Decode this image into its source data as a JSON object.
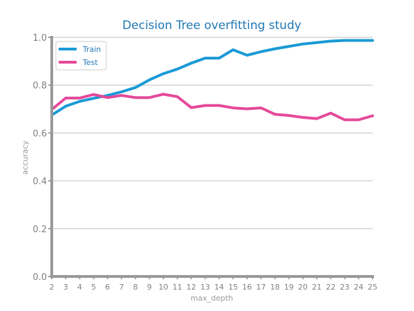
{
  "chart_data": {
    "type": "line",
    "title": "Decision Tree overfitting study",
    "xlabel": "max_depth",
    "ylabel": "accuracy",
    "x": [
      2,
      3,
      4,
      5,
      6,
      7,
      8,
      9,
      10,
      11,
      12,
      13,
      14,
      15,
      16,
      17,
      18,
      19,
      20,
      21,
      22,
      23,
      24,
      25
    ],
    "xlim": [
      2,
      25
    ],
    "ylim": [
      0.0,
      1.0
    ],
    "yticks": [
      "0.0",
      "0.2",
      "0.4",
      "0.6",
      "0.8",
      "1.0"
    ],
    "grid": "horizontal",
    "legend_position": "top-left",
    "series": [
      {
        "name": "Train",
        "color": "#1a9ad6",
        "values": [
          0.675,
          0.712,
          0.732,
          0.745,
          0.757,
          0.772,
          0.79,
          0.822,
          0.848,
          0.867,
          0.892,
          0.913,
          0.913,
          0.948,
          0.925,
          0.94,
          0.952,
          0.962,
          0.972,
          0.978,
          0.984,
          0.987,
          0.987,
          0.987
        ]
      },
      {
        "name": "Test",
        "color": "#e5499a",
        "values": [
          0.698,
          0.746,
          0.746,
          0.761,
          0.748,
          0.757,
          0.748,
          0.748,
          0.762,
          0.752,
          0.706,
          0.715,
          0.715,
          0.705,
          0.701,
          0.705,
          0.678,
          0.673,
          0.665,
          0.66,
          0.683,
          0.655,
          0.655,
          0.672
        ]
      }
    ]
  },
  "colors": {
    "title": "#1f77b4",
    "axis": "#999999",
    "grid": "#d3d3d3",
    "tick_label": "#808080"
  }
}
